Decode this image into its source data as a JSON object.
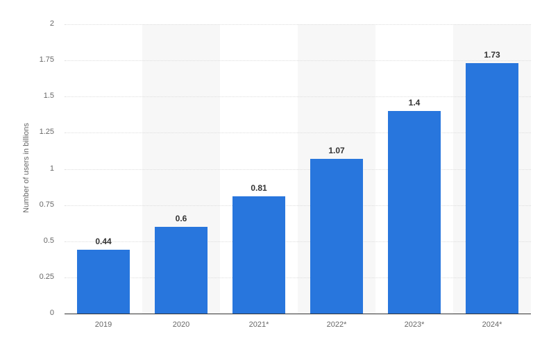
{
  "chart_data": {
    "type": "bar",
    "title": "",
    "xlabel": "",
    "ylabel": "Number of users in billions",
    "categories": [
      "2019",
      "2020",
      "2021*",
      "2022*",
      "2023*",
      "2024*"
    ],
    "values": [
      0.44,
      0.6,
      0.81,
      1.07,
      1.4,
      1.73
    ],
    "value_labels": [
      "0.44",
      "0.6",
      "0.81",
      "1.07",
      "1.4",
      "1.73"
    ],
    "ylim": [
      0,
      2
    ],
    "yticks": [
      "0",
      "0.25",
      "0.5",
      "0.75",
      "1",
      "1.25",
      "1.5",
      "1.75",
      "2"
    ],
    "grid": true,
    "legend": null,
    "bar_color": "#2876dd"
  }
}
